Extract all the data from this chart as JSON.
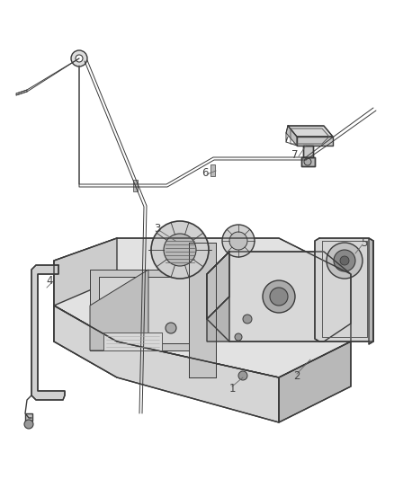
{
  "background_color": "#ffffff",
  "line_color": "#3a3a3a",
  "light_line_color": "#5a5a5a",
  "fill_light": "#e8e8e8",
  "fill_mid": "#d0d0d0",
  "fill_dark": "#b8b8b8",
  "label_color": "#444444",
  "fig_width": 4.38,
  "fig_height": 5.33,
  "dpi": 100
}
